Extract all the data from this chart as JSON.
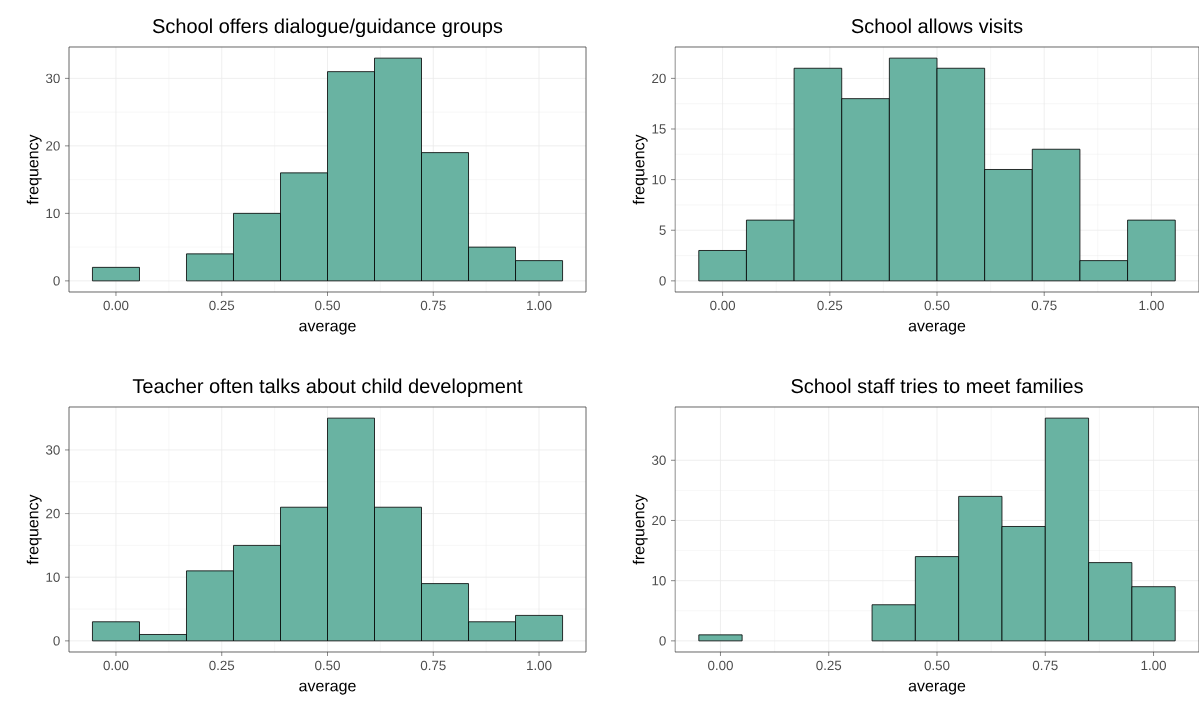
{
  "chart_data": [
    {
      "type": "histogram",
      "title": "School offers dialogue/guidance groups",
      "xlabel": "average",
      "ylabel": "frequency",
      "color": "#69b3a2",
      "grid": true,
      "bins": [
        -0.0556,
        0.0556,
        0.1667,
        0.2778,
        0.3889,
        0.5,
        0.6111,
        0.7222,
        0.8333,
        0.9444,
        1.0556
      ],
      "values": [
        2,
        0,
        4,
        10,
        16,
        31,
        33,
        19,
        5,
        3
      ],
      "xlim": [
        -0.111,
        1.111
      ],
      "ylim": [
        -1.65,
        34.65
      ],
      "xticks": [
        {
          "value": 0,
          "label": "0.00"
        },
        {
          "value": 0.25,
          "label": "0.25"
        },
        {
          "value": 0.5,
          "label": "0.50"
        },
        {
          "value": 0.75,
          "label": "0.75"
        },
        {
          "value": 1,
          "label": "1.00"
        }
      ],
      "yticks": [
        0,
        10,
        20,
        30
      ]
    },
    {
      "type": "histogram",
      "title": "School allows visits",
      "xlabel": "average",
      "ylabel": "frequency",
      "color": "#69b3a2",
      "grid": true,
      "bins": [
        -0.0556,
        0.0556,
        0.1667,
        0.2778,
        0.3889,
        0.5,
        0.6111,
        0.7222,
        0.8333,
        0.9444,
        1.0556
      ],
      "values": [
        3,
        6,
        21,
        18,
        22,
        21,
        11,
        13,
        2,
        6
      ],
      "xlim": [
        -0.111,
        1.111
      ],
      "ylim": [
        -1.1,
        23.1
      ],
      "xticks": [
        {
          "value": 0,
          "label": "0.00"
        },
        {
          "value": 0.25,
          "label": "0.25"
        },
        {
          "value": 0.5,
          "label": "0.50"
        },
        {
          "value": 0.75,
          "label": "0.75"
        },
        {
          "value": 1,
          "label": "1.00"
        }
      ],
      "yticks": [
        0,
        5,
        10,
        15,
        20
      ]
    },
    {
      "type": "histogram",
      "title": "Teacher often talks about child development",
      "xlabel": "average",
      "ylabel": "frequency",
      "color": "#69b3a2",
      "grid": true,
      "bins": [
        -0.0556,
        0.0556,
        0.1667,
        0.2778,
        0.3889,
        0.5,
        0.6111,
        0.7222,
        0.8333,
        0.9444,
        1.0556
      ],
      "values": [
        3,
        1,
        11,
        15,
        21,
        35,
        21,
        9,
        3,
        4
      ],
      "xlim": [
        -0.111,
        1.111
      ],
      "ylim": [
        -1.75,
        36.75
      ],
      "xticks": [
        {
          "value": 0,
          "label": "0.00"
        },
        {
          "value": 0.25,
          "label": "0.25"
        },
        {
          "value": 0.5,
          "label": "0.50"
        },
        {
          "value": 0.75,
          "label": "0.75"
        },
        {
          "value": 1,
          "label": "1.00"
        }
      ],
      "yticks": [
        0,
        10,
        20,
        30
      ]
    },
    {
      "type": "histogram",
      "title": "School staff tries to meet families",
      "xlabel": "average",
      "ylabel": "frequency",
      "color": "#69b3a2",
      "grid": true,
      "bins": [
        -0.05,
        0.05,
        0.15,
        0.25,
        0.35,
        0.45,
        0.55,
        0.65,
        0.75,
        0.85,
        0.95,
        1.05
      ],
      "values": [
        1,
        0,
        0,
        0,
        6,
        14,
        24,
        19,
        37,
        13,
        9
      ],
      "xlim": [
        -0.105,
        1.105
      ],
      "ylim": [
        -1.85,
        38.85
      ],
      "xticks": [
        {
          "value": 0,
          "label": "0.00"
        },
        {
          "value": 0.25,
          "label": "0.25"
        },
        {
          "value": 0.5,
          "label": "0.50"
        },
        {
          "value": 0.75,
          "label": "0.75"
        },
        {
          "value": 1,
          "label": "1.00"
        }
      ],
      "yticks": [
        0,
        10,
        20,
        30
      ]
    }
  ]
}
